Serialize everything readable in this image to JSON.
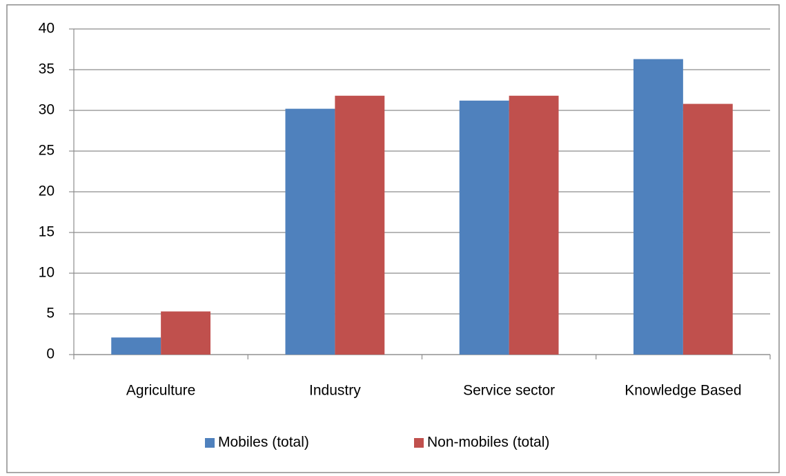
{
  "chart_data": {
    "type": "bar",
    "categories": [
      "Agriculture",
      "Industry",
      "Service sector",
      "Knowledge Based"
    ],
    "series": [
      {
        "name": "Mobiles (total)",
        "color": "#4f81bd",
        "values": [
          2.1,
          30.2,
          31.2,
          36.3
        ]
      },
      {
        "name": "Non-mobiles (total)",
        "color": "#c0504d",
        "values": [
          5.3,
          31.8,
          31.8,
          30.8
        ]
      }
    ],
    "ylim": [
      0,
      40
    ],
    "yticks": [
      0,
      5,
      10,
      15,
      20,
      25,
      30,
      35,
      40
    ],
    "grid": true,
    "legend": "bottom"
  }
}
